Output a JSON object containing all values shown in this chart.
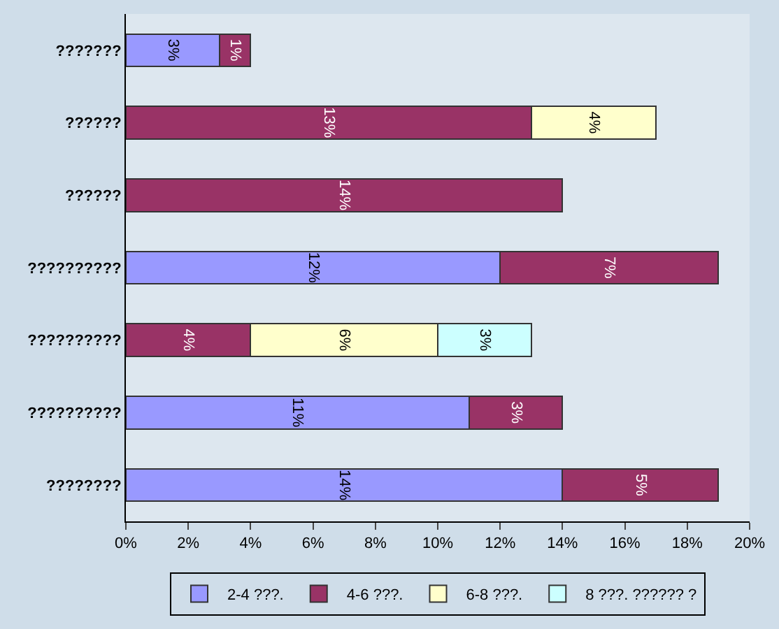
{
  "chart_data": {
    "type": "bar",
    "orientation": "horizontal",
    "stacked": true,
    "categories": [
      "???????",
      "??????",
      "??????",
      "??????????",
      "??????????",
      "??????????",
      "????????"
    ],
    "series": [
      {
        "name": "2-4 ???.",
        "color": "#9999ff",
        "values": [
          3,
          null,
          null,
          12,
          null,
          11,
          14
        ],
        "value_labels": [
          "3%",
          null,
          null,
          "12%",
          null,
          "11%",
          "14%"
        ]
      },
      {
        "name": "4-6 ???.",
        "color": "#993366",
        "values": [
          1,
          13,
          14,
          7,
          4,
          3,
          5
        ],
        "value_labels": [
          "1%",
          "13%",
          "14%",
          "7%",
          "4%",
          "3%",
          "5%"
        ]
      },
      {
        "name": "6-8 ???.",
        "color": "#ffffcc",
        "values": [
          null,
          4,
          null,
          null,
          6,
          null,
          null
        ],
        "value_labels": [
          null,
          "4%",
          null,
          null,
          "6%",
          null,
          null
        ]
      },
      {
        "name": "8 ???. ?????? ?",
        "color": "#ccffff",
        "values": [
          null,
          null,
          null,
          null,
          3,
          null,
          null
        ],
        "value_labels": [
          null,
          null,
          null,
          null,
          "3%",
          null,
          null
        ]
      }
    ],
    "xlim": [
      0,
      20
    ],
    "xticks": [
      {
        "value": 0,
        "label": "0%"
      },
      {
        "value": 2,
        "label": "2%"
      },
      {
        "value": 4,
        "label": "4%"
      },
      {
        "value": 6,
        "label": "6%"
      },
      {
        "value": 8,
        "label": "8%"
      },
      {
        "value": 10,
        "label": "10%"
      },
      {
        "value": 12,
        "label": "12%"
      },
      {
        "value": 14,
        "label": "14%"
      },
      {
        "value": 16,
        "label": "16%"
      },
      {
        "value": 18,
        "label": "18%"
      },
      {
        "value": 20,
        "label": "20%"
      }
    ],
    "legend": "bottom",
    "grid": false
  }
}
